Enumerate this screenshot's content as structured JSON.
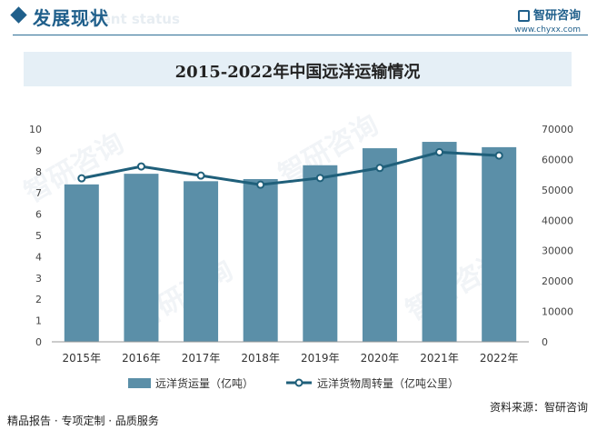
{
  "header": {
    "section_title": "发展现状",
    "section_subtitle": "ment status",
    "brand_name": "智研咨询",
    "brand_url": "www.chyxx.com"
  },
  "chart_data": {
    "type": "bar",
    "title": "2015-2022年中国远洋运输情况",
    "categories": [
      "2015年",
      "2016年",
      "2017年",
      "2018年",
      "2019年",
      "2020年",
      "2021年",
      "2022年"
    ],
    "series": [
      {
        "name": "远洋货运量（亿吨）",
        "type": "bar",
        "axis": "left",
        "values": [
          7.4,
          7.9,
          7.55,
          7.65,
          8.3,
          9.1,
          9.4,
          9.15
        ],
        "color": "#5b8fa8"
      },
      {
        "name": "远洋货物周转量（亿吨公里）",
        "type": "line",
        "axis": "right",
        "values": [
          53800,
          57700,
          54700,
          51700,
          53900,
          57200,
          62400,
          61300
        ],
        "color": "#1f5f7a"
      }
    ],
    "y_left": {
      "ylim": [
        0,
        10
      ],
      "ticks": [
        "0",
        "1",
        "2",
        "3",
        "4",
        "5",
        "6",
        "7",
        "8",
        "9",
        "10"
      ]
    },
    "y_right": {
      "ylim": [
        0,
        70000
      ],
      "ticks": [
        "0",
        "10000",
        "20000",
        "30000",
        "40000",
        "50000",
        "60000",
        "70000"
      ]
    },
    "grid": false,
    "legend_position": "bottom"
  },
  "footer": {
    "left": "精品报告 · 专项定制 · 品质服务",
    "source": "资料来源：智研咨询"
  },
  "watermark_text": "智研咨询"
}
